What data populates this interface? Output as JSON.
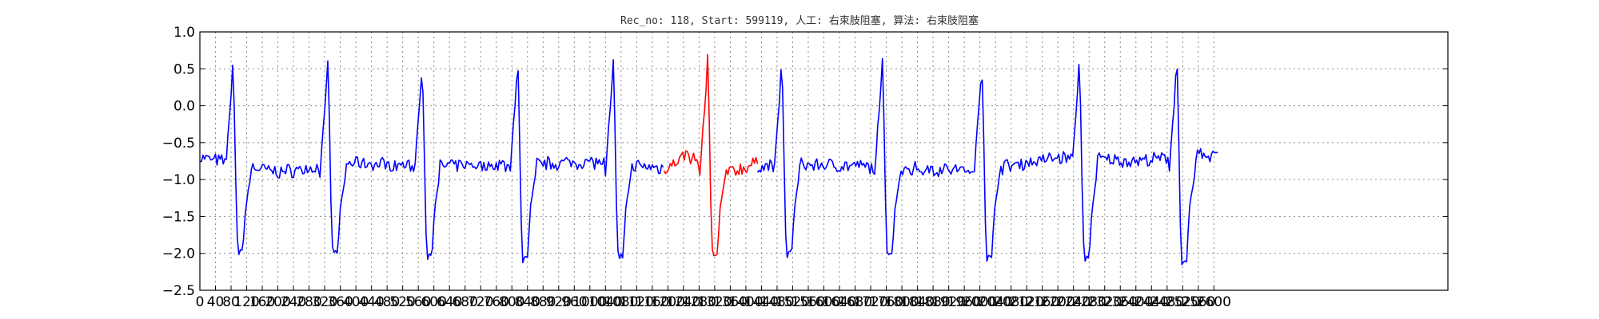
{
  "chart_data": {
    "type": "line",
    "title": "Rec_no: 118, Start: 599119, 人工: 右束肢阻塞, 算法: 右束肢阻塞",
    "xlabel": "",
    "ylabel": "",
    "xlim": [
      0,
      3200
    ],
    "ylim": [
      -2.5,
      1.0
    ],
    "grid": true,
    "legend": "none",
    "yticks": [
      1.0,
      0.5,
      0.0,
      -0.5,
      -1.0,
      -1.5,
      -2.0,
      -2.5
    ],
    "ytick_labels": [
      "1.0",
      "0.5",
      "0.0",
      "−0.5",
      "−1.0",
      "−1.5",
      "−2.0",
      "−2.5"
    ],
    "xticks": [
      0,
      40,
      80,
      120,
      160,
      200,
      240,
      280,
      320,
      360,
      400,
      440,
      480,
      520,
      560,
      600,
      640,
      680,
      720,
      760,
      800,
      840,
      880,
      920,
      960,
      1000,
      1040,
      1080,
      1120,
      1160,
      1200,
      1240,
      1280,
      1320,
      1360,
      1400,
      1440,
      1480,
      1520,
      1560,
      1600,
      1640,
      1680,
      1720,
      1760,
      1800,
      1840,
      1880,
      1920,
      1960,
      2000,
      2040,
      2080,
      2120,
      2160,
      2200,
      2240,
      2280,
      2320,
      2360,
      2400,
      2440,
      2480,
      2520,
      2560,
      2600
    ],
    "xtick_labels": [
      "0",
      "40",
      "80",
      "120",
      "160",
      "200",
      "240",
      "280",
      "320",
      "360",
      "400",
      "440",
      "480",
      "520",
      "560",
      "600",
      "640",
      "680",
      "720",
      "760",
      "800",
      "840",
      "880",
      "920",
      "960",
      "1000",
      "1040",
      "1080",
      "1120",
      "1160",
      "1200",
      "1240",
      "1280",
      "1320",
      "1360",
      "1400",
      "1440",
      "1480",
      "1520",
      "1560",
      "1600",
      "1640",
      "1680",
      "1720",
      "1760",
      "1800",
      "1840",
      "1880",
      "1920",
      "1960",
      "2000",
      "2040",
      "2080",
      "2120",
      "2160",
      "2200",
      "2240",
      "2280",
      "2320",
      "2360",
      "2400",
      "2440",
      "2480",
      "2520",
      "2560",
      "2600"
    ],
    "series": [
      {
        "color": "#0000ff",
        "x_start": 0,
        "x_end": 1190,
        "baseline": [
          [
            0,
            -0.7
          ],
          [
            200,
            -0.9
          ],
          [
            400,
            -0.78
          ],
          [
            600,
            -0.82
          ],
          [
            800,
            -0.8
          ],
          [
            1000,
            -0.76
          ],
          [
            1190,
            -0.85
          ]
        ],
        "beats": [
          85,
          328,
          570,
          815,
          1060
        ],
        "peaks": [
          0.62,
          0.63,
          0.57,
          0.67,
          0.6
        ],
        "troughs": [
          -2.02,
          -2.05,
          -2.07,
          -2.12,
          -2.1
        ]
      },
      {
        "color": "#ff0000",
        "x_start": 1190,
        "x_end": 1430,
        "baseline": [
          [
            1190,
            -0.85
          ],
          [
            1250,
            -0.66
          ],
          [
            1300,
            -0.85
          ],
          [
            1360,
            -0.9
          ],
          [
            1430,
            -0.78
          ]
        ],
        "beats": [
          1302
        ],
        "peaks": [
          0.68
        ],
        "troughs": [
          -2.08
        ]
      },
      {
        "color": "#0000ff",
        "x_start": 1430,
        "x_end": 2610,
        "baseline": [
          [
            1430,
            -0.82
          ],
          [
            1600,
            -0.8
          ],
          [
            1800,
            -0.85
          ],
          [
            2000,
            -0.88
          ],
          [
            2200,
            -0.7
          ],
          [
            2400,
            -0.75
          ],
          [
            2610,
            -0.66
          ]
        ],
        "beats": [
          1492,
          1750,
          2005,
          2255,
          2505
        ],
        "peaks": [
          0.68,
          0.62,
          0.52,
          0.64,
          0.76
        ],
        "troughs": [
          -2.05,
          -2.07,
          -2.1,
          -2.13,
          -2.15
        ]
      }
    ]
  }
}
